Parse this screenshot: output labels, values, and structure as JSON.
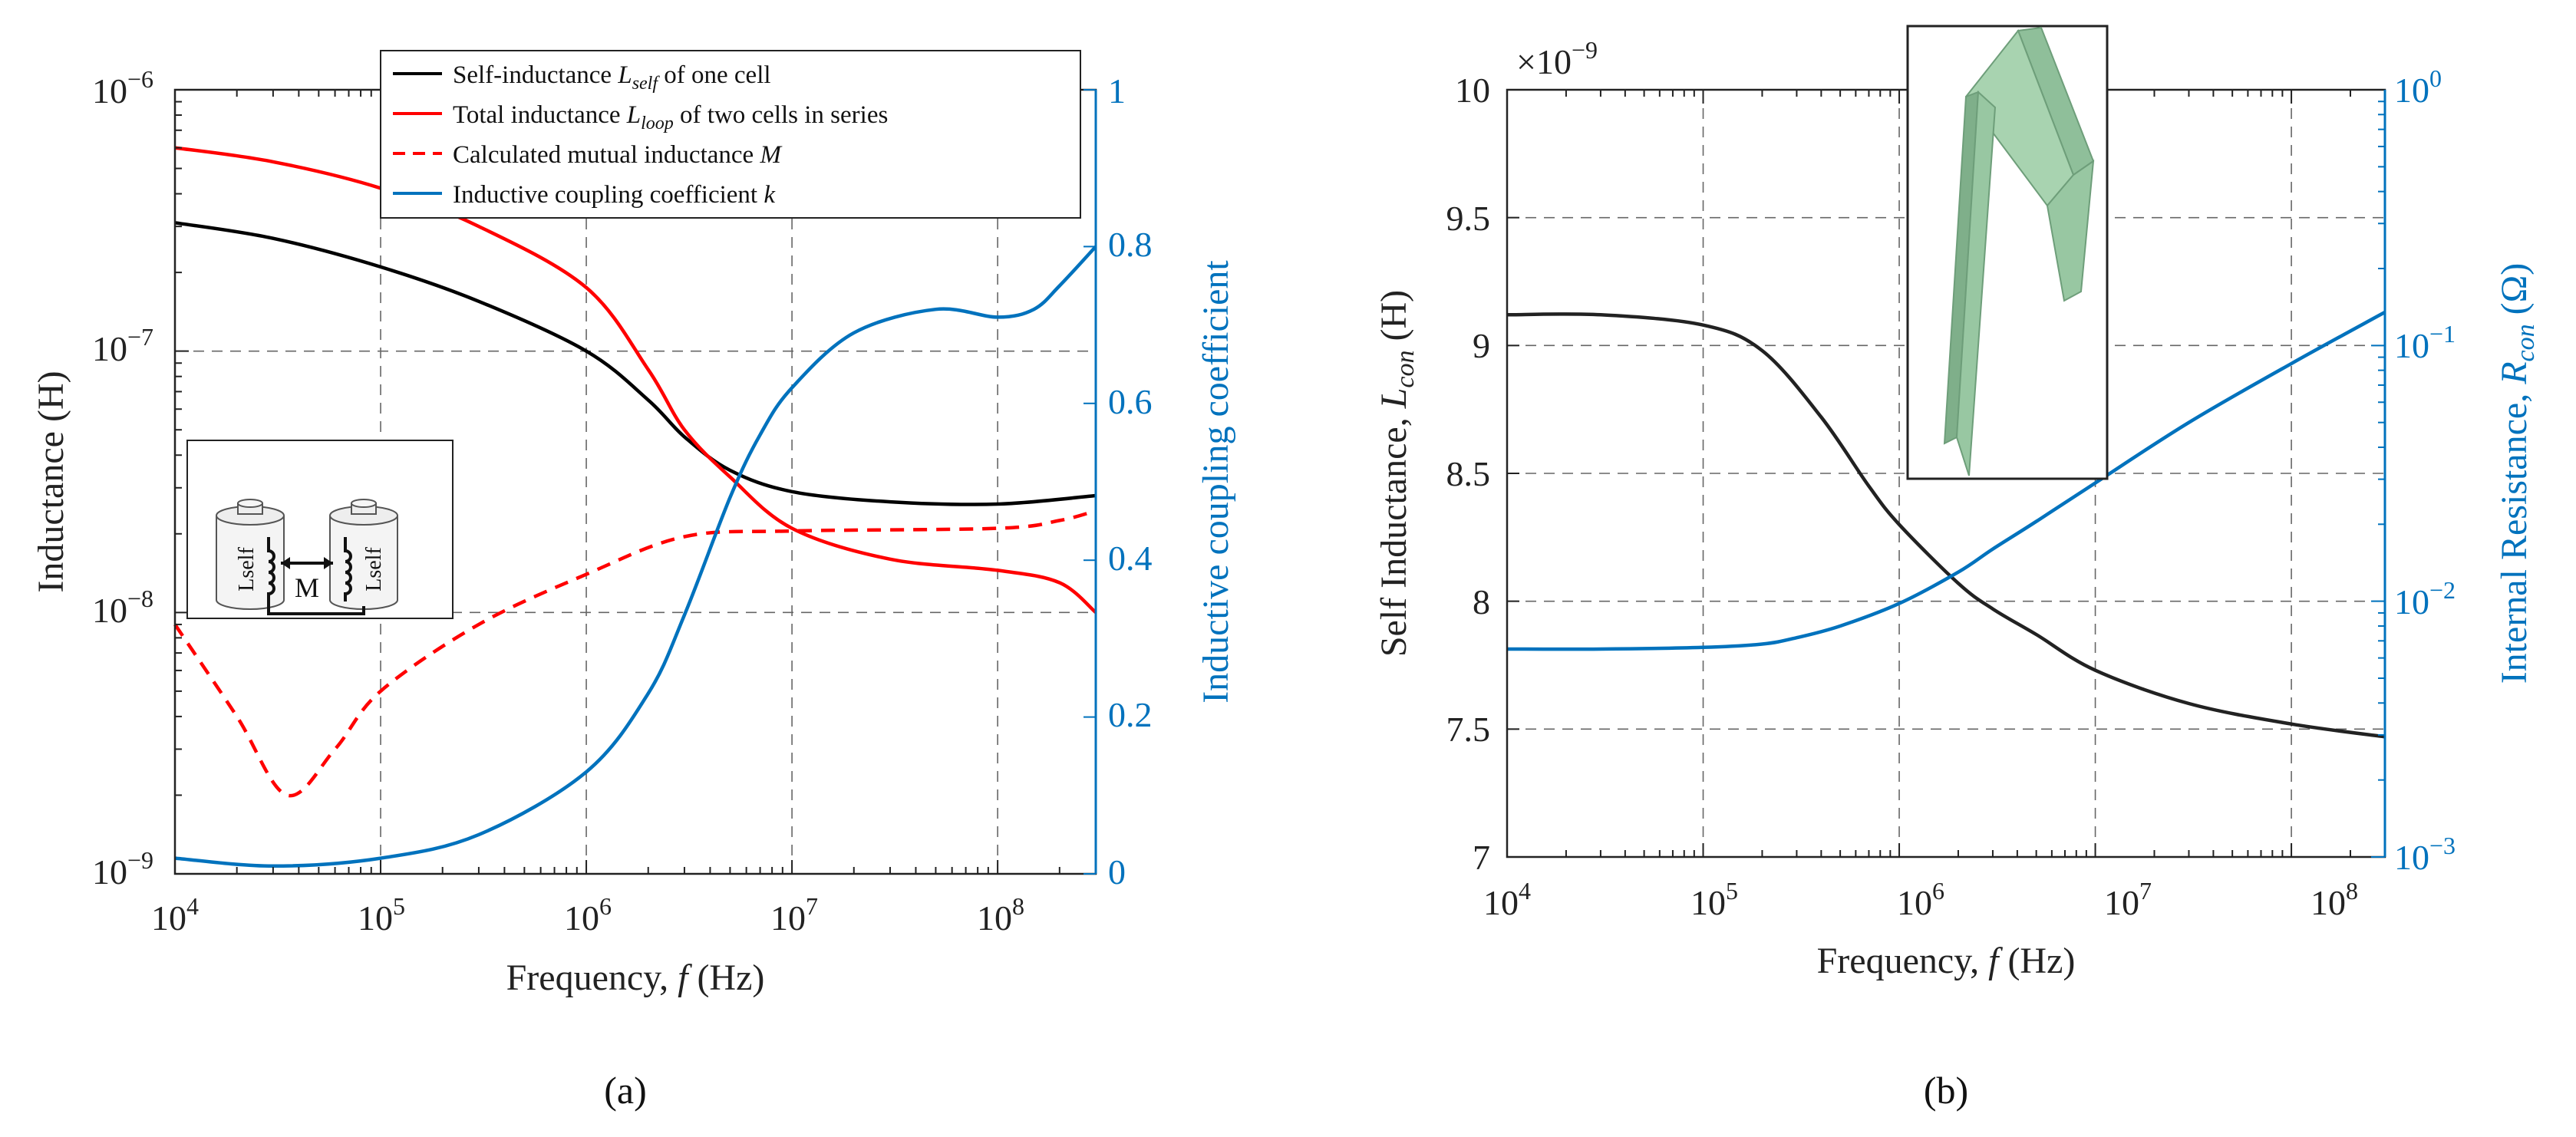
{
  "chart_data": [
    {
      "panel": "(a)",
      "type": "line",
      "xscale": "log",
      "xlabel_prefix": "Frequency, ",
      "xlabel_var": "f",
      "xlabel_unit": " (Hz)",
      "ylabel": "Inductance (H)",
      "ylabel_right": "Inductive coupling coefficient",
      "xlim": [
        10000,
        300000000
      ],
      "ylim": [
        1e-09,
        1e-06
      ],
      "ylim_right": [
        0,
        1
      ],
      "x_ticks": [
        {
          "b": "10",
          "e": "4"
        },
        {
          "b": "10",
          "e": "5"
        },
        {
          "b": "10",
          "e": "6"
        },
        {
          "b": "10",
          "e": "7"
        },
        {
          "b": "10",
          "e": "8"
        }
      ],
      "y_ticks": [
        {
          "b": "10",
          "e": "−9"
        },
        {
          "b": "10",
          "e": "−8"
        },
        {
          "b": "10",
          "e": "−7"
        },
        {
          "b": "10",
          "e": "−6"
        }
      ],
      "y_right_ticks": [
        "0",
        "0.2",
        "0.4",
        "0.6",
        "0.8",
        "1"
      ],
      "legend": [
        {
          "pre": "Self-inductance ",
          "sym": "L",
          "sub": "self",
          "post": " of one cell"
        },
        {
          "pre": "Total inductance ",
          "sym": "L",
          "sub": "loop",
          "post": " of two cells in series"
        },
        {
          "pre": "Calculated mutual inductance ",
          "sym": "M",
          "sub": "",
          "post": ""
        },
        {
          "pre": "Inductive coupling coefficient ",
          "sym": "k",
          "sub": "",
          "post": ""
        }
      ],
      "inset_labels": {
        "lself": "Lself",
        "m": "M"
      },
      "series": [
        {
          "name": "Self-inductance Lself of one cell",
          "color": "#000000",
          "style": "solid",
          "axis": "left",
          "x": [
            10000.0,
            30000.0,
            100000.0,
            300000.0,
            1000000.0,
            2000000.0,
            3000000.0,
            5000000.0,
            10000000.0,
            30000000.0,
            100000000.0,
            300000000.0
          ],
          "y": [
            3.1e-07,
            2.7e-07,
            2.1e-07,
            1.55e-07,
            1e-07,
            6.5e-08,
            4.7e-08,
            3.5e-08,
            2.9e-08,
            2.65e-08,
            2.6e-08,
            2.8e-08
          ]
        },
        {
          "name": "Total inductance Lloop of two cells in series",
          "color": "#FF0000",
          "style": "solid",
          "axis": "left",
          "x": [
            10000.0,
            30000.0,
            100000.0,
            300000.0,
            1000000.0,
            2000000.0,
            3000000.0,
            5000000.0,
            10000000.0,
            30000000.0,
            100000000.0,
            200000000.0,
            300000000.0
          ],
          "y": [
            6e-07,
            5.3e-07,
            4.2e-07,
            3e-07,
            1.75e-07,
            8.5e-08,
            5e-08,
            3.3e-08,
            2.1e-08,
            1.6e-08,
            1.45e-08,
            1.3e-08,
            1e-08
          ]
        },
        {
          "name": "Calculated mutual inductance M",
          "color": "#FF0000",
          "style": "dashed",
          "axis": "left",
          "x": [
            10000.0,
            20000.0,
            35000.0,
            60000.0,
            100000.0,
            300000.0,
            1000000.0,
            3000000.0,
            10000000.0,
            100000000.0,
            200000000.0,
            300000000.0
          ],
          "y": [
            9e-09,
            4e-09,
            2e-09,
            3e-09,
            5e-09,
            9e-09,
            1.4e-08,
            1.95e-08,
            2.05e-08,
            2.1e-08,
            2.25e-08,
            2.45e-08
          ]
        },
        {
          "name": "Inductive coupling coefficient k",
          "color": "#0072BD",
          "style": "solid",
          "axis": "right",
          "x": [
            10000.0,
            30000.0,
            100000.0,
            300000.0,
            1000000.0,
            2000000.0,
            3000000.0,
            5000000.0,
            7000000.0,
            10000000.0,
            20000000.0,
            50000000.0,
            100000000.0,
            150000000.0,
            200000000.0,
            300000000.0
          ],
          "y": [
            0.02,
            0.01,
            0.02,
            0.05,
            0.13,
            0.23,
            0.33,
            0.48,
            0.56,
            0.62,
            0.69,
            0.72,
            0.71,
            0.72,
            0.75,
            0.8
          ]
        }
      ],
      "caption": "(a)"
    },
    {
      "panel": "(b)",
      "type": "line",
      "xscale": "log",
      "xlabel_prefix": "Frequency, ",
      "xlabel_var": "f",
      "xlabel_unit": " (Hz)",
      "ylabel_pre": "Self Inductance, ",
      "ylabel_sym": "L",
      "ylabel_sub": "con",
      "ylabel_post": " (H)",
      "ylabel_right_pre": "Internal Resistance, ",
      "ylabel_right_sym": "R",
      "ylabel_right_sub": "con",
      "ylabel_right_post": " (Ω)",
      "y_multiplier_base": "×10",
      "y_multiplier_exp": "−9",
      "xlim": [
        10000,
        300000000
      ],
      "ylim": [
        7,
        10
      ],
      "ylim_right": [
        0.001,
        1
      ],
      "x_ticks": [
        {
          "b": "10",
          "e": "4"
        },
        {
          "b": "10",
          "e": "5"
        },
        {
          "b": "10",
          "e": "6"
        },
        {
          "b": "10",
          "e": "7"
        },
        {
          "b": "10",
          "e": "8"
        }
      ],
      "y_ticks": [
        "7",
        "7.5",
        "8",
        "8.5",
        "9",
        "9.5",
        "10"
      ],
      "y_right_ticks": [
        {
          "b": "10",
          "e": "−3"
        },
        {
          "b": "10",
          "e": "−2"
        },
        {
          "b": "10",
          "e": "−1"
        },
        {
          "b": "10",
          "e": "0"
        }
      ],
      "series": [
        {
          "name": "Self inductance Lcon",
          "color": "#222222",
          "axis": "left",
          "x": [
            10000.0,
            30000.0,
            100000.0,
            200000.0,
            400000.0,
            700000.0,
            1000000.0,
            2000000.0,
            3000000.0,
            5000000.0,
            10000000.0,
            30000000.0,
            100000000.0,
            300000000.0
          ],
          "y": [
            9.12,
            9.12,
            9.08,
            8.98,
            8.72,
            8.45,
            8.3,
            8.07,
            7.97,
            7.87,
            7.73,
            7.6,
            7.52,
            7.47
          ]
        },
        {
          "name": "Internal resistance Rcon",
          "color": "#0072BD",
          "axis": "right",
          "x": [
            10000.0,
            30000.0,
            100000.0,
            200000.0,
            300000.0,
            500000.0,
            1000000.0,
            2000000.0,
            3000000.0,
            5000000.0,
            10000000.0,
            30000000.0,
            100000000.0,
            300000000.0
          ],
          "y": [
            0.0065,
            0.0065,
            0.0066,
            0.0068,
            0.0072,
            0.008,
            0.0098,
            0.013,
            0.016,
            0.0205,
            0.029,
            0.05,
            0.085,
            0.135
          ]
        }
      ],
      "caption": "(b)"
    }
  ]
}
